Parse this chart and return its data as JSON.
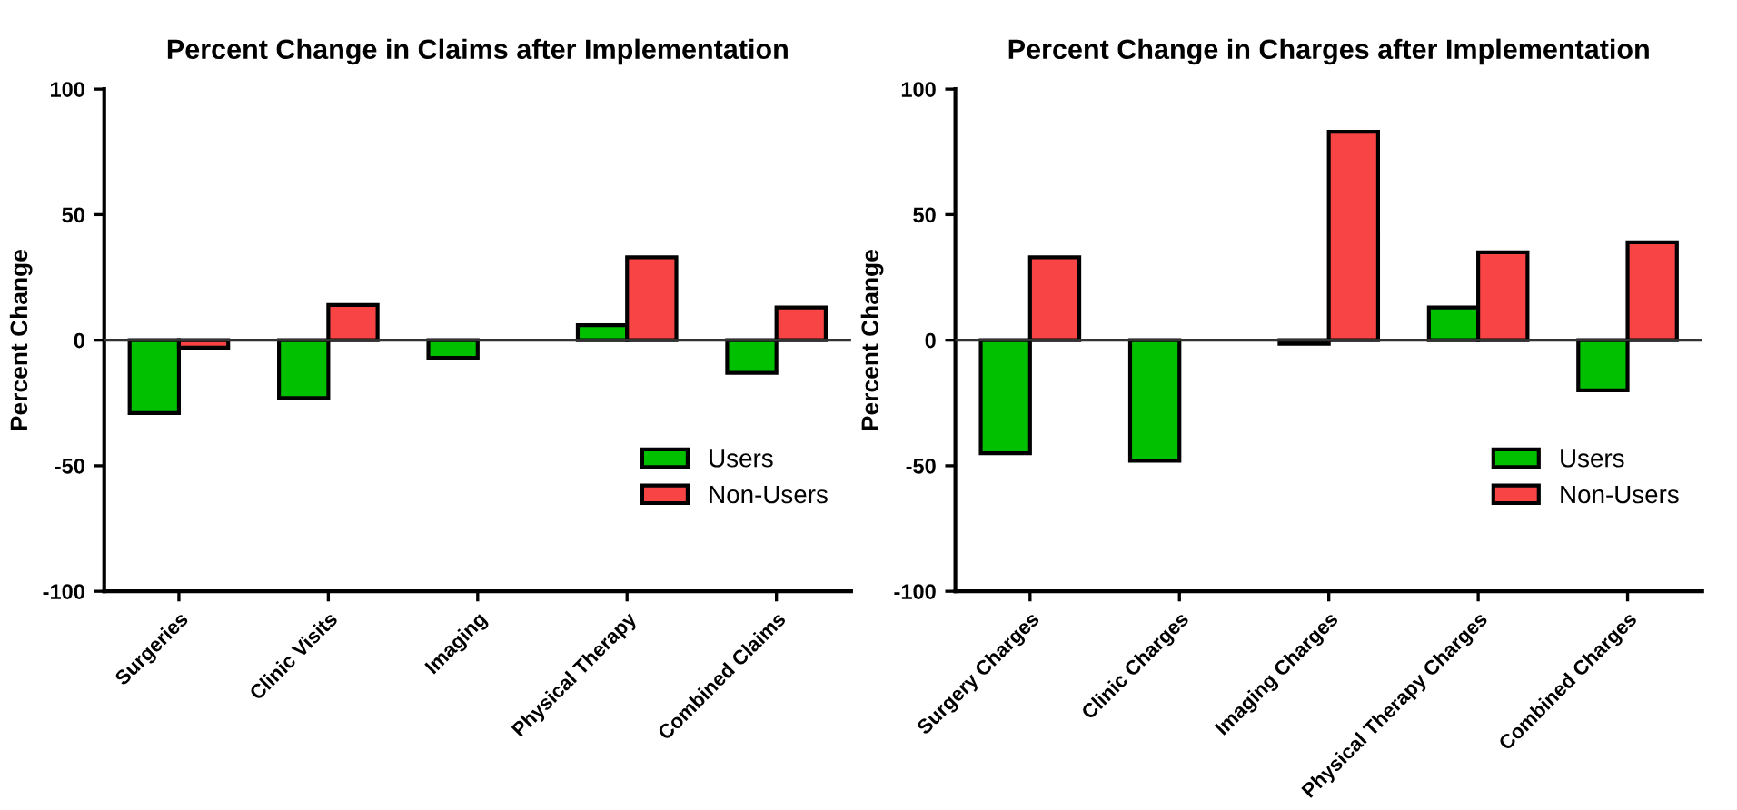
{
  "chart_data": [
    {
      "type": "bar",
      "title": "Percent Change in Claims after Implementation",
      "ylabel": "Percent Change",
      "categories": [
        "Surgeries",
        "Clinic Visits",
        "Imaging",
        "Physical Therapy",
        "Combined Claims"
      ],
      "series": [
        {
          "name": "Users",
          "color": "#00c000",
          "values": [
            -29,
            -23,
            -7,
            6,
            -13
          ]
        },
        {
          "name": "Non-Users",
          "color": "#f84444",
          "values": [
            -3,
            14,
            null,
            33,
            13
          ]
        }
      ],
      "ylim": [
        -100,
        100
      ],
      "yticks": [
        -100,
        -50,
        0,
        50,
        100
      ],
      "ref_lines": [
        {
          "axis": "y",
          "value": 0,
          "color": "#333333"
        }
      ],
      "legend": "bottom right"
    },
    {
      "type": "bar",
      "title": "Percent Change in Charges after Implementation",
      "ylabel": "Percent Change",
      "categories": [
        "Surgery Charges",
        "Clinic Charges",
        "Imaging Charges",
        "Physical Therapy Charges",
        "Combined Charges"
      ],
      "series": [
        {
          "name": "Users",
          "color": "#00c000",
          "values": [
            -45,
            -48,
            -1.5,
            13,
            -20
          ]
        },
        {
          "name": "Non-Users",
          "color": "#f84444",
          "values": [
            33,
            null,
            83,
            35,
            39
          ]
        }
      ],
      "ylim": [
        -100,
        100
      ],
      "yticks": [
        -100,
        -50,
        0,
        50,
        100
      ],
      "ref_lines": [
        {
          "axis": "y",
          "value": 0,
          "color": "#333333"
        }
      ],
      "legend": "bottom right"
    }
  ]
}
